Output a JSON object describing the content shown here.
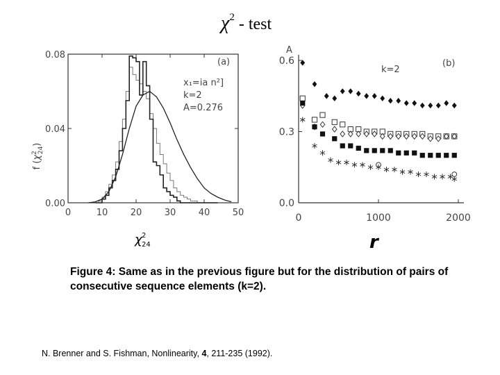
{
  "title": {
    "symbol": "χ",
    "superscript": "2",
    "text": "- test"
  },
  "chart_data": [
    {
      "panel": "(a)",
      "type": "bar",
      "style": "histogram with fitted curve",
      "xlabel": {
        "symbol": "χ",
        "sup": "2",
        "sub": "24"
      },
      "ylabel": {
        "prefix": "f (",
        "symbol": "χ",
        "sup": "2",
        "sub": "24",
        "suffix": ")"
      },
      "xlim": [
        0,
        50
      ],
      "ylim": [
        0,
        0.08
      ],
      "xticks": [
        "0",
        "10",
        "20",
        "30",
        "40",
        "50"
      ],
      "yticks": [
        "0.00",
        "0.04",
        "0.08"
      ],
      "bin_width": 1,
      "bin_starts": [
        8,
        9,
        10,
        11,
        12,
        13,
        14,
        15,
        16,
        17,
        18,
        19,
        20,
        21,
        22,
        23,
        24,
        25,
        26,
        27,
        28,
        29,
        30,
        31,
        32,
        33,
        34,
        35,
        36,
        37,
        38,
        39,
        40,
        41,
        42,
        43
      ],
      "hist_solid": [
        0.0,
        0.0,
        0.002,
        0.004,
        0.008,
        0.012,
        0.018,
        0.028,
        0.04,
        0.055,
        0.079,
        0.078,
        0.076,
        0.058,
        0.076,
        0.063,
        0.045,
        0.022,
        0.02,
        0.015,
        0.008,
        0.006,
        0.004,
        0.003,
        0.001,
        0.0,
        0.0,
        0.0,
        0.0,
        0.0,
        0.0,
        0.0,
        0.0,
        0.0,
        0.0,
        0.0
      ],
      "hist_thin": [
        0.0,
        0.001,
        0.003,
        0.006,
        0.01,
        0.015,
        0.022,
        0.033,
        0.045,
        0.06,
        0.073,
        0.069,
        0.066,
        0.064,
        0.06,
        0.056,
        0.048,
        0.04,
        0.032,
        0.026,
        0.021,
        0.016,
        0.012,
        0.008,
        0.006,
        0.004,
        0.003,
        0.002,
        0.001,
        0.001,
        0.0,
        0.0,
        0.0,
        0.0,
        0.0,
        0.0
      ],
      "curve": {
        "x": [
          6,
          8,
          10,
          12,
          14,
          16,
          18,
          20,
          22,
          24,
          26,
          28,
          30,
          32,
          34,
          36,
          38,
          40,
          42,
          44,
          46,
          48
        ],
        "y": [
          0.0,
          0.0005,
          0.002,
          0.006,
          0.014,
          0.026,
          0.04,
          0.052,
          0.058,
          0.06,
          0.057,
          0.051,
          0.043,
          0.034,
          0.026,
          0.019,
          0.013,
          0.008,
          0.005,
          0.003,
          0.0015,
          0.0005
        ]
      },
      "annotations": [
        "x₁=ia n²]",
        "k=2",
        "A=0.276"
      ]
    },
    {
      "panel": "(b)",
      "type": "scatter",
      "xlabel": "r",
      "ylabel": "A",
      "xlim": [
        0,
        2000
      ],
      "ylim": [
        0,
        0.6
      ],
      "xticks": [
        "0",
        "1000",
        "2000"
      ],
      "yticks": [
        "0.0",
        "0.3",
        "0.6"
      ],
      "annotation": "k=2",
      "series": [
        {
          "name": "filled diamonds",
          "marker": "diamond-filled",
          "x": [
            50,
            200,
            350,
            450,
            550,
            650,
            750,
            850,
            950,
            1050,
            1150,
            1250,
            1350,
            1450,
            1550,
            1650,
            1750,
            1850,
            1950
          ],
          "y": [
            0.59,
            0.5,
            0.45,
            0.44,
            0.47,
            0.47,
            0.46,
            0.45,
            0.45,
            0.44,
            0.43,
            0.43,
            0.42,
            0.42,
            0.41,
            0.41,
            0.41,
            0.42,
            0.41
          ]
        },
        {
          "name": "open squares",
          "marker": "square-open",
          "x": [
            50,
            200,
            300,
            450,
            550,
            650,
            750,
            850,
            950,
            1050,
            1150,
            1250,
            1350,
            1450,
            1550,
            1650,
            1750,
            1850,
            1950
          ],
          "y": [
            0.44,
            0.35,
            0.37,
            0.34,
            0.33,
            0.31,
            0.31,
            0.3,
            0.3,
            0.3,
            0.29,
            0.29,
            0.29,
            0.29,
            0.29,
            0.28,
            0.28,
            0.28,
            0.28
          ]
        },
        {
          "name": "open diamonds",
          "marker": "diamond-open",
          "x": [
            50,
            200,
            300,
            450,
            550,
            650,
            750,
            850,
            950,
            1050,
            1150,
            1250,
            1350,
            1450,
            1550,
            1650,
            1750,
            1850,
            1950
          ],
          "y": [
            0.41,
            0.32,
            0.33,
            0.31,
            0.29,
            0.29,
            0.29,
            0.29,
            0.29,
            0.28,
            0.28,
            0.28,
            0.28,
            0.28,
            0.28,
            0.27,
            0.27,
            0.28,
            0.28
          ]
        },
        {
          "name": "filled squares",
          "marker": "square-filled",
          "x": [
            50,
            200,
            300,
            450,
            550,
            650,
            750,
            850,
            950,
            1050,
            1150,
            1250,
            1350,
            1450,
            1550,
            1650,
            1750,
            1850,
            1950
          ],
          "y": [
            0.42,
            0.32,
            0.29,
            0.27,
            0.24,
            0.24,
            0.23,
            0.22,
            0.22,
            0.22,
            0.22,
            0.21,
            0.21,
            0.21,
            0.2,
            0.2,
            0.2,
            0.2,
            0.2
          ]
        },
        {
          "name": "asterisks",
          "marker": "asterisk",
          "x": [
            50,
            200,
            300,
            400,
            500,
            600,
            700,
            800,
            900,
            1000,
            1100,
            1200,
            1300,
            1400,
            1500,
            1600,
            1700,
            1800,
            1900,
            1950
          ],
          "y": [
            0.35,
            0.24,
            0.21,
            0.18,
            0.17,
            0.17,
            0.16,
            0.16,
            0.15,
            0.15,
            0.14,
            0.14,
            0.13,
            0.13,
            0.12,
            0.12,
            0.11,
            0.11,
            0.11,
            0.1
          ]
        },
        {
          "name": "open circles",
          "marker": "circle-open",
          "x": [
            1000,
            1950
          ],
          "y": [
            0.16,
            0.12
          ]
        }
      ]
    }
  ],
  "caption": "Figure 4: Same as in the previous figure but for the distribution of pairs of consecutive sequence elements (k=2).",
  "reference": {
    "before": "N. Brenner and S. Fishman, Nonlinearity, ",
    "volume": "4",
    "after": ", 211-235 (1992)."
  }
}
